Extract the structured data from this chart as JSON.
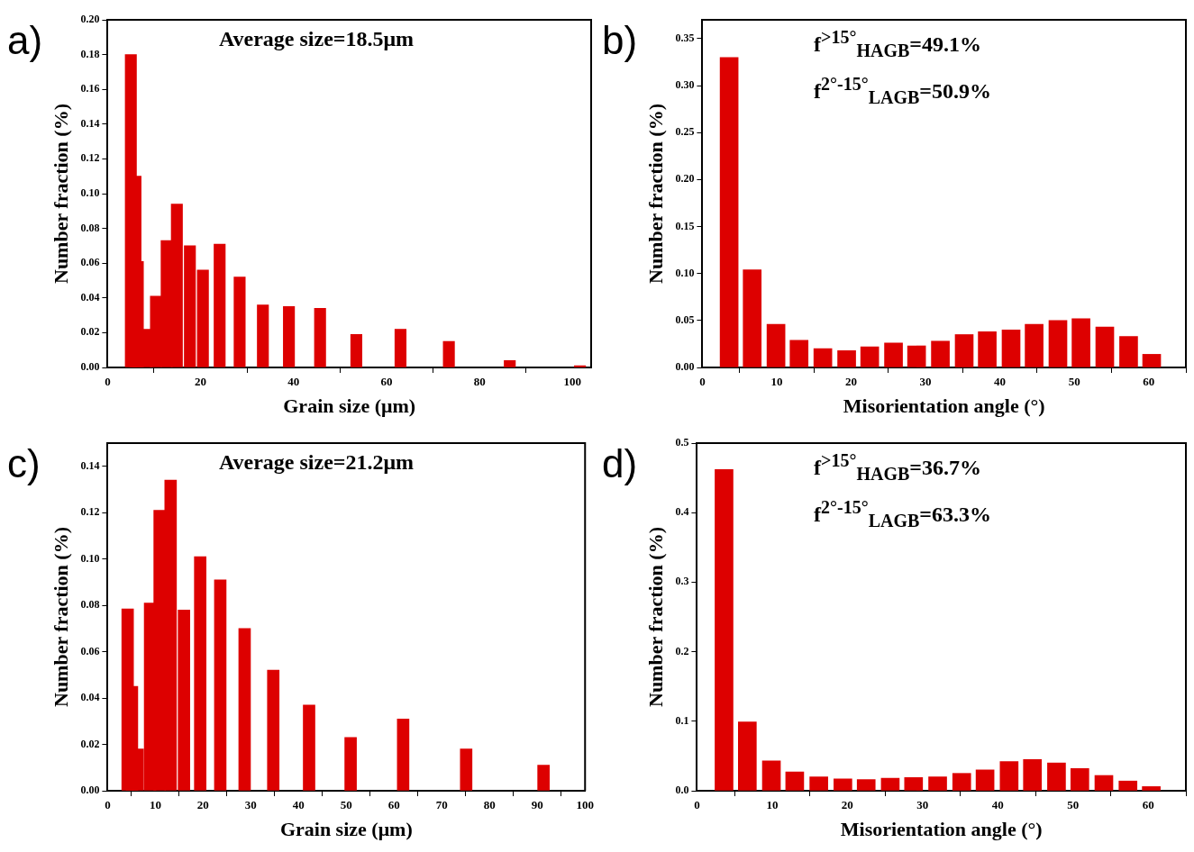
{
  "chart_data": [
    {
      "type": "bar",
      "title": "a)",
      "xlabel": "Grain size (μm)",
      "ylabel": "Number fraction (%)",
      "annotations": [
        "Average size=18.5μm"
      ],
      "color": "#dd0000",
      "x": [
        5,
        6,
        6.5,
        8.4,
        10.4,
        12.7,
        14.9,
        17.7,
        20.5,
        24.1,
        28.4,
        33.4,
        39,
        45.7,
        53.5,
        63,
        73.4,
        86.5,
        101.6
      ],
      "values": [
        0.18,
        0.11,
        0.061,
        0.022,
        0.041,
        0.073,
        0.094,
        0.07,
        0.056,
        0.071,
        0.052,
        0.036,
        0.035,
        0.034,
        0.019,
        0.022,
        0.015,
        0.004,
        0.001
      ],
      "xlim": [
        0,
        104
      ],
      "xticks": [
        0,
        20,
        40,
        60,
        80,
        100
      ],
      "ylim": [
        0,
        0.2
      ],
      "yticks": [
        {
          "value": 0,
          "label": "0.00"
        },
        0.02,
        0.04,
        0.06,
        0.08,
        {
          "value": 0.1,
          "label": "0.10"
        },
        0.12,
        0.14,
        0.16,
        0.18,
        {
          "value": 0.2,
          "label": "0.20"
        }
      ]
    },
    {
      "type": "bar",
      "title": "b)",
      "xlabel": "Misorientation angle (°)",
      "ylabel": "Number fraction (%)",
      "annotations": [
        "f$^{>15°}$$_{HAGB}$=49.1%",
        "f$^{2°-15°}$$_{LAGB}$=50.9%"
      ],
      "color": "#dd0000",
      "x": [
        3.6,
        6.7,
        9.9,
        13,
        16.2,
        19.4,
        22.5,
        25.7,
        28.8,
        32,
        35.2,
        38.3,
        41.5,
        44.6,
        47.8,
        50.9,
        54.1,
        57.3,
        60.4
      ],
      "values": [
        0.33,
        0.104,
        0.046,
        0.029,
        0.02,
        0.018,
        0.022,
        0.026,
        0.023,
        0.028,
        0.035,
        0.038,
        0.04,
        0.046,
        0.05,
        0.052,
        0.043,
        0.033,
        0.014
      ],
      "xlim": [
        0,
        65
      ],
      "xticks": [
        0,
        10,
        20,
        30,
        40,
        50,
        60
      ],
      "ylim": [
        0,
        0.37
      ],
      "yticks": [
        {
          "value": 0,
          "label": "0.00"
        },
        0.05,
        {
          "value": 0.1,
          "label": "0.10"
        },
        0.15,
        {
          "value": 0.2,
          "label": "0.20"
        },
        0.25,
        {
          "value": 0.3,
          "label": "0.30"
        },
        0.35
      ]
    },
    {
      "type": "bar",
      "title": "c)",
      "xlabel": "Grain size (μm)",
      "ylabel": "Number fraction (%)",
      "annotations": [
        "Average size=21.2μm"
      ],
      "color": "#dd0000",
      "x": [
        4.2,
        5.1,
        6.3,
        8.9,
        10.9,
        13.2,
        16,
        19.4,
        23.6,
        28.7,
        34.7,
        42.2,
        50.9,
        61.9,
        75.1,
        91.3
      ],
      "values": [
        0.0785,
        0.045,
        0.018,
        0.081,
        0.121,
        0.134,
        0.078,
        0.101,
        0.091,
        0.07,
        0.052,
        0.037,
        0.023,
        0.031,
        0.018,
        0.011
      ],
      "xlim": [
        0,
        100
      ],
      "xticks": [
        0,
        10,
        20,
        30,
        40,
        50,
        60,
        70,
        80,
        90,
        100
      ],
      "ylim": [
        0,
        0.15
      ],
      "yticks": [
        {
          "value": 0,
          "label": "0.00"
        },
        0.02,
        0.04,
        0.06,
        0.08,
        {
          "value": 0.1,
          "label": "0.10"
        },
        0.12,
        0.14
      ]
    },
    {
      "type": "bar",
      "title": "d)",
      "xlabel": "Misorientation angle (°)",
      "ylabel": "Number fraction (%)",
      "annotations": [
        "f$^{>15°}$$_{HAGB}$=36.7%",
        "f$^{2°-15°}$$_{LAGB}$=63.3%"
      ],
      "color": "#dd0000",
      "x": [
        3.6,
        6.7,
        9.9,
        13,
        16.2,
        19.4,
        22.5,
        25.7,
        28.8,
        32,
        35.2,
        38.3,
        41.5,
        44.6,
        47.8,
        50.9,
        54.1,
        57.3,
        60.4
      ],
      "values": [
        0.462,
        0.099,
        0.043,
        0.027,
        0.02,
        0.017,
        0.016,
        0.018,
        0.019,
        0.02,
        0.025,
        0.03,
        0.042,
        0.045,
        0.04,
        0.032,
        0.022,
        0.014,
        0.006
      ],
      "xlim": [
        0,
        65
      ],
      "xticks": [
        0,
        10,
        20,
        30,
        40,
        50,
        60
      ],
      "ylim": [
        0,
        0.5
      ],
      "yticks": [
        {
          "value": 0,
          "label": "0.0"
        },
        0.1,
        0.2,
        0.3,
        0.4,
        0.5
      ]
    }
  ]
}
